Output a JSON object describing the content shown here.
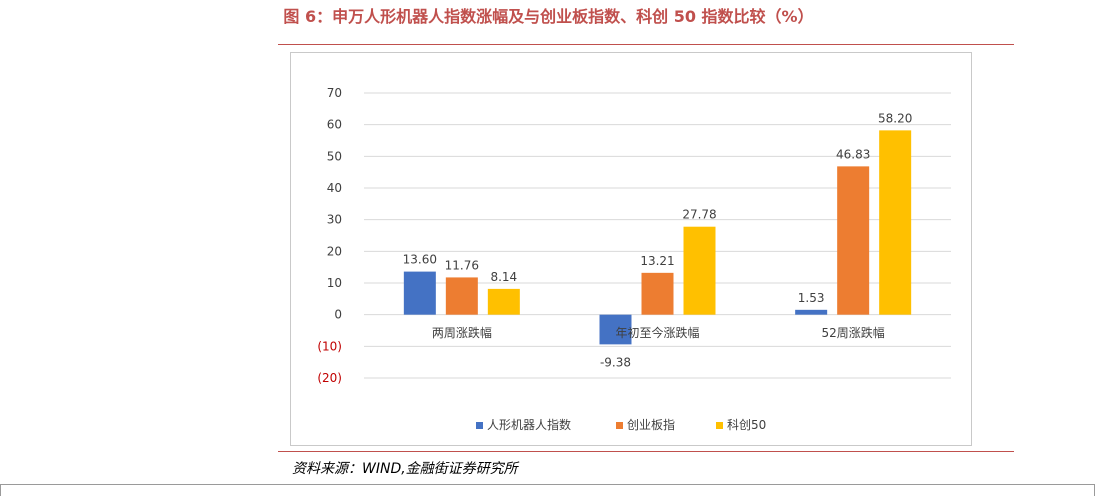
{
  "figure": {
    "title": "图 6：申万人形机器人指数涨幅及与创业板指数、科创 50 指数比较（%）",
    "source": "资料来源：WIND,金融街证券研究所"
  },
  "colors": {
    "accent": "#c0504d",
    "series": [
      "#4472c4",
      "#ed7d31",
      "#ffc000"
    ],
    "negative_tick": "#c00000"
  },
  "chart_data": {
    "type": "bar",
    "categories": [
      "两周涨跌幅",
      "年初至今涨跌幅",
      "52周涨跌幅"
    ],
    "series": [
      {
        "name": "人形机器人指数",
        "values": [
          13.6,
          -9.38,
          1.53
        ],
        "labels": [
          "13.60",
          "-9.38",
          "1.53"
        ]
      },
      {
        "name": "创业板指",
        "values": [
          11.76,
          13.21,
          46.83
        ],
        "labels": [
          "11.76",
          "13.21",
          "46.83"
        ]
      },
      {
        "name": "科创50",
        "values": [
          8.14,
          27.78,
          58.2
        ],
        "labels": [
          "8.14",
          "27.78",
          "58.20"
        ]
      }
    ],
    "ylim": [
      -20,
      70
    ],
    "yticks": [
      70,
      60,
      50,
      40,
      30,
      20,
      10,
      0,
      -10,
      -20
    ],
    "ytick_labels": [
      "70",
      "60",
      "50",
      "40",
      "30",
      "20",
      "10",
      "0",
      "(10)",
      "(20)"
    ],
    "grid": true,
    "legend": "bottom-center",
    "title": "",
    "xlabel": "",
    "ylabel": ""
  }
}
